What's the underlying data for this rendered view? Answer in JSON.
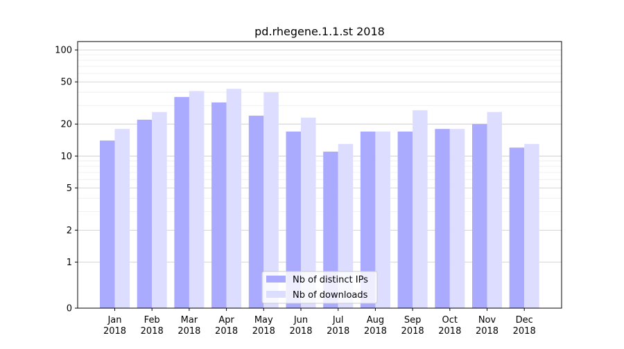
{
  "chart_data": {
    "type": "bar",
    "title": "pd.rhegene.1.1.st 2018",
    "xlabel": "",
    "ylabel": "",
    "y_scale": "symlog",
    "ylim": [
      0,
      120
    ],
    "y_ticks": [
      0,
      1,
      2,
      5,
      10,
      20,
      50,
      100
    ],
    "y_tick_labels": [
      "0",
      "1",
      "2",
      "5",
      "10",
      "20",
      "50",
      "100"
    ],
    "categories": [
      [
        "Jan",
        "2018"
      ],
      [
        "Feb",
        "2018"
      ],
      [
        "Mar",
        "2018"
      ],
      [
        "Apr",
        "2018"
      ],
      [
        "May",
        "2018"
      ],
      [
        "Jun",
        "2018"
      ],
      [
        "Jul",
        "2018"
      ],
      [
        "Aug",
        "2018"
      ],
      [
        "Sep",
        "2018"
      ],
      [
        "Oct",
        "2018"
      ],
      [
        "Nov",
        "2018"
      ],
      [
        "Dec",
        "2018"
      ]
    ],
    "series": [
      {
        "name": "Nb of distinct IPs",
        "color": "#aaaaff",
        "values": [
          14,
          22,
          36,
          32,
          24,
          17,
          11,
          17,
          17,
          18,
          20,
          12
        ]
      },
      {
        "name": "Nb of downloads",
        "color": "#ddddff",
        "values": [
          18,
          26,
          41,
          43,
          40,
          23,
          13,
          17,
          27,
          18,
          26,
          13
        ]
      }
    ],
    "grid": true,
    "legend_position": "bottom-center"
  }
}
